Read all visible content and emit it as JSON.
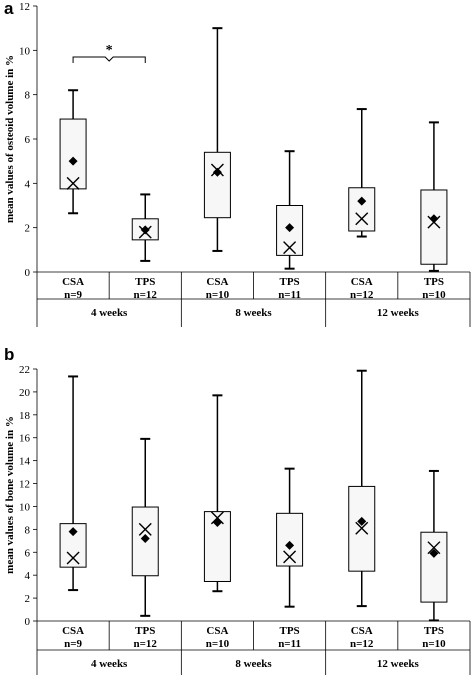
{
  "chart_data": [
    {
      "type": "box",
      "panel": "a",
      "ylabel": "mean values of osteoid volume in %",
      "ylim": [
        0,
        12
      ],
      "yticks": [
        0,
        2,
        4,
        6,
        8,
        10,
        12
      ],
      "significance": {
        "label": "*",
        "between": [
          0,
          1
        ]
      },
      "categories": [
        {
          "label": "CSA",
          "n": "n=9",
          "group": "4 weeks",
          "min": 2.65,
          "q1": 3.75,
          "q3": 6.9,
          "max": 8.2,
          "mean": 5.0,
          "median": 4.0
        },
        {
          "label": "TPS",
          "n": "n=12",
          "group": "4 weeks",
          "min": 0.5,
          "q1": 1.45,
          "q3": 2.4,
          "max": 3.5,
          "mean": 1.9,
          "median": 1.8
        },
        {
          "label": "CSA",
          "n": "n=10",
          "group": "8 weeks",
          "min": 0.95,
          "q1": 2.45,
          "q3": 5.4,
          "max": 11.0,
          "mean": 4.5,
          "median": 4.6
        },
        {
          "label": "TPS",
          "n": "n=11",
          "group": "8 weeks",
          "min": 0.15,
          "q1": 0.75,
          "q3": 3.0,
          "max": 5.45,
          "mean": 2.0,
          "median": 1.1
        },
        {
          "label": "CSA",
          "n": "n=12",
          "group": "12 weeks",
          "min": 1.6,
          "q1": 1.85,
          "q3": 3.8,
          "max": 7.35,
          "mean": 3.2,
          "median": 2.4
        },
        {
          "label": "TPS",
          "n": "n=10",
          "group": "12 weeks",
          "min": 0.05,
          "q1": 0.35,
          "q3": 3.7,
          "max": 6.75,
          "mean": 2.4,
          "median": 2.25
        }
      ],
      "groups": [
        "4 weeks",
        "8 weeks",
        "12 weeks"
      ]
    },
    {
      "type": "box",
      "panel": "b",
      "ylabel": "mean values of bone volume in %",
      "ylim": [
        0,
        22
      ],
      "yticks": [
        0,
        2,
        4,
        6,
        8,
        10,
        12,
        14,
        16,
        18,
        20,
        22
      ],
      "categories": [
        {
          "label": "CSA",
          "n": "n=9",
          "group": "4 weeks",
          "min": 2.7,
          "q1": 4.7,
          "q3": 8.5,
          "max": 21.35,
          "mean": 7.8,
          "median": 5.5
        },
        {
          "label": "TPS",
          "n": "n=12",
          "group": "4 weeks",
          "min": 0.45,
          "q1": 3.95,
          "q3": 9.95,
          "max": 15.9,
          "mean": 7.2,
          "median": 8.0
        },
        {
          "label": "CSA",
          "n": "n=10",
          "group": "8 weeks",
          "min": 2.6,
          "q1": 3.45,
          "q3": 9.55,
          "max": 19.7,
          "mean": 8.6,
          "median": 9.0
        },
        {
          "label": "TPS",
          "n": "n=11",
          "group": "8 weeks",
          "min": 1.25,
          "q1": 4.8,
          "q3": 9.4,
          "max": 13.3,
          "mean": 6.6,
          "median": 5.6
        },
        {
          "label": "CSA",
          "n": "n=12",
          "group": "12 weeks",
          "min": 1.3,
          "q1": 4.35,
          "q3": 11.75,
          "max": 21.85,
          "mean": 8.7,
          "median": 8.1
        },
        {
          "label": "TPS",
          "n": "n=10",
          "group": "12 weeks",
          "min": 0.05,
          "q1": 1.65,
          "q3": 7.75,
          "max": 13.1,
          "mean": 5.9,
          "median": 6.4
        }
      ],
      "groups": [
        "4 weeks",
        "8 weeks",
        "12 weeks"
      ]
    }
  ],
  "colors": {
    "box_fill": "#f7f7f7",
    "stroke": "#000000"
  }
}
